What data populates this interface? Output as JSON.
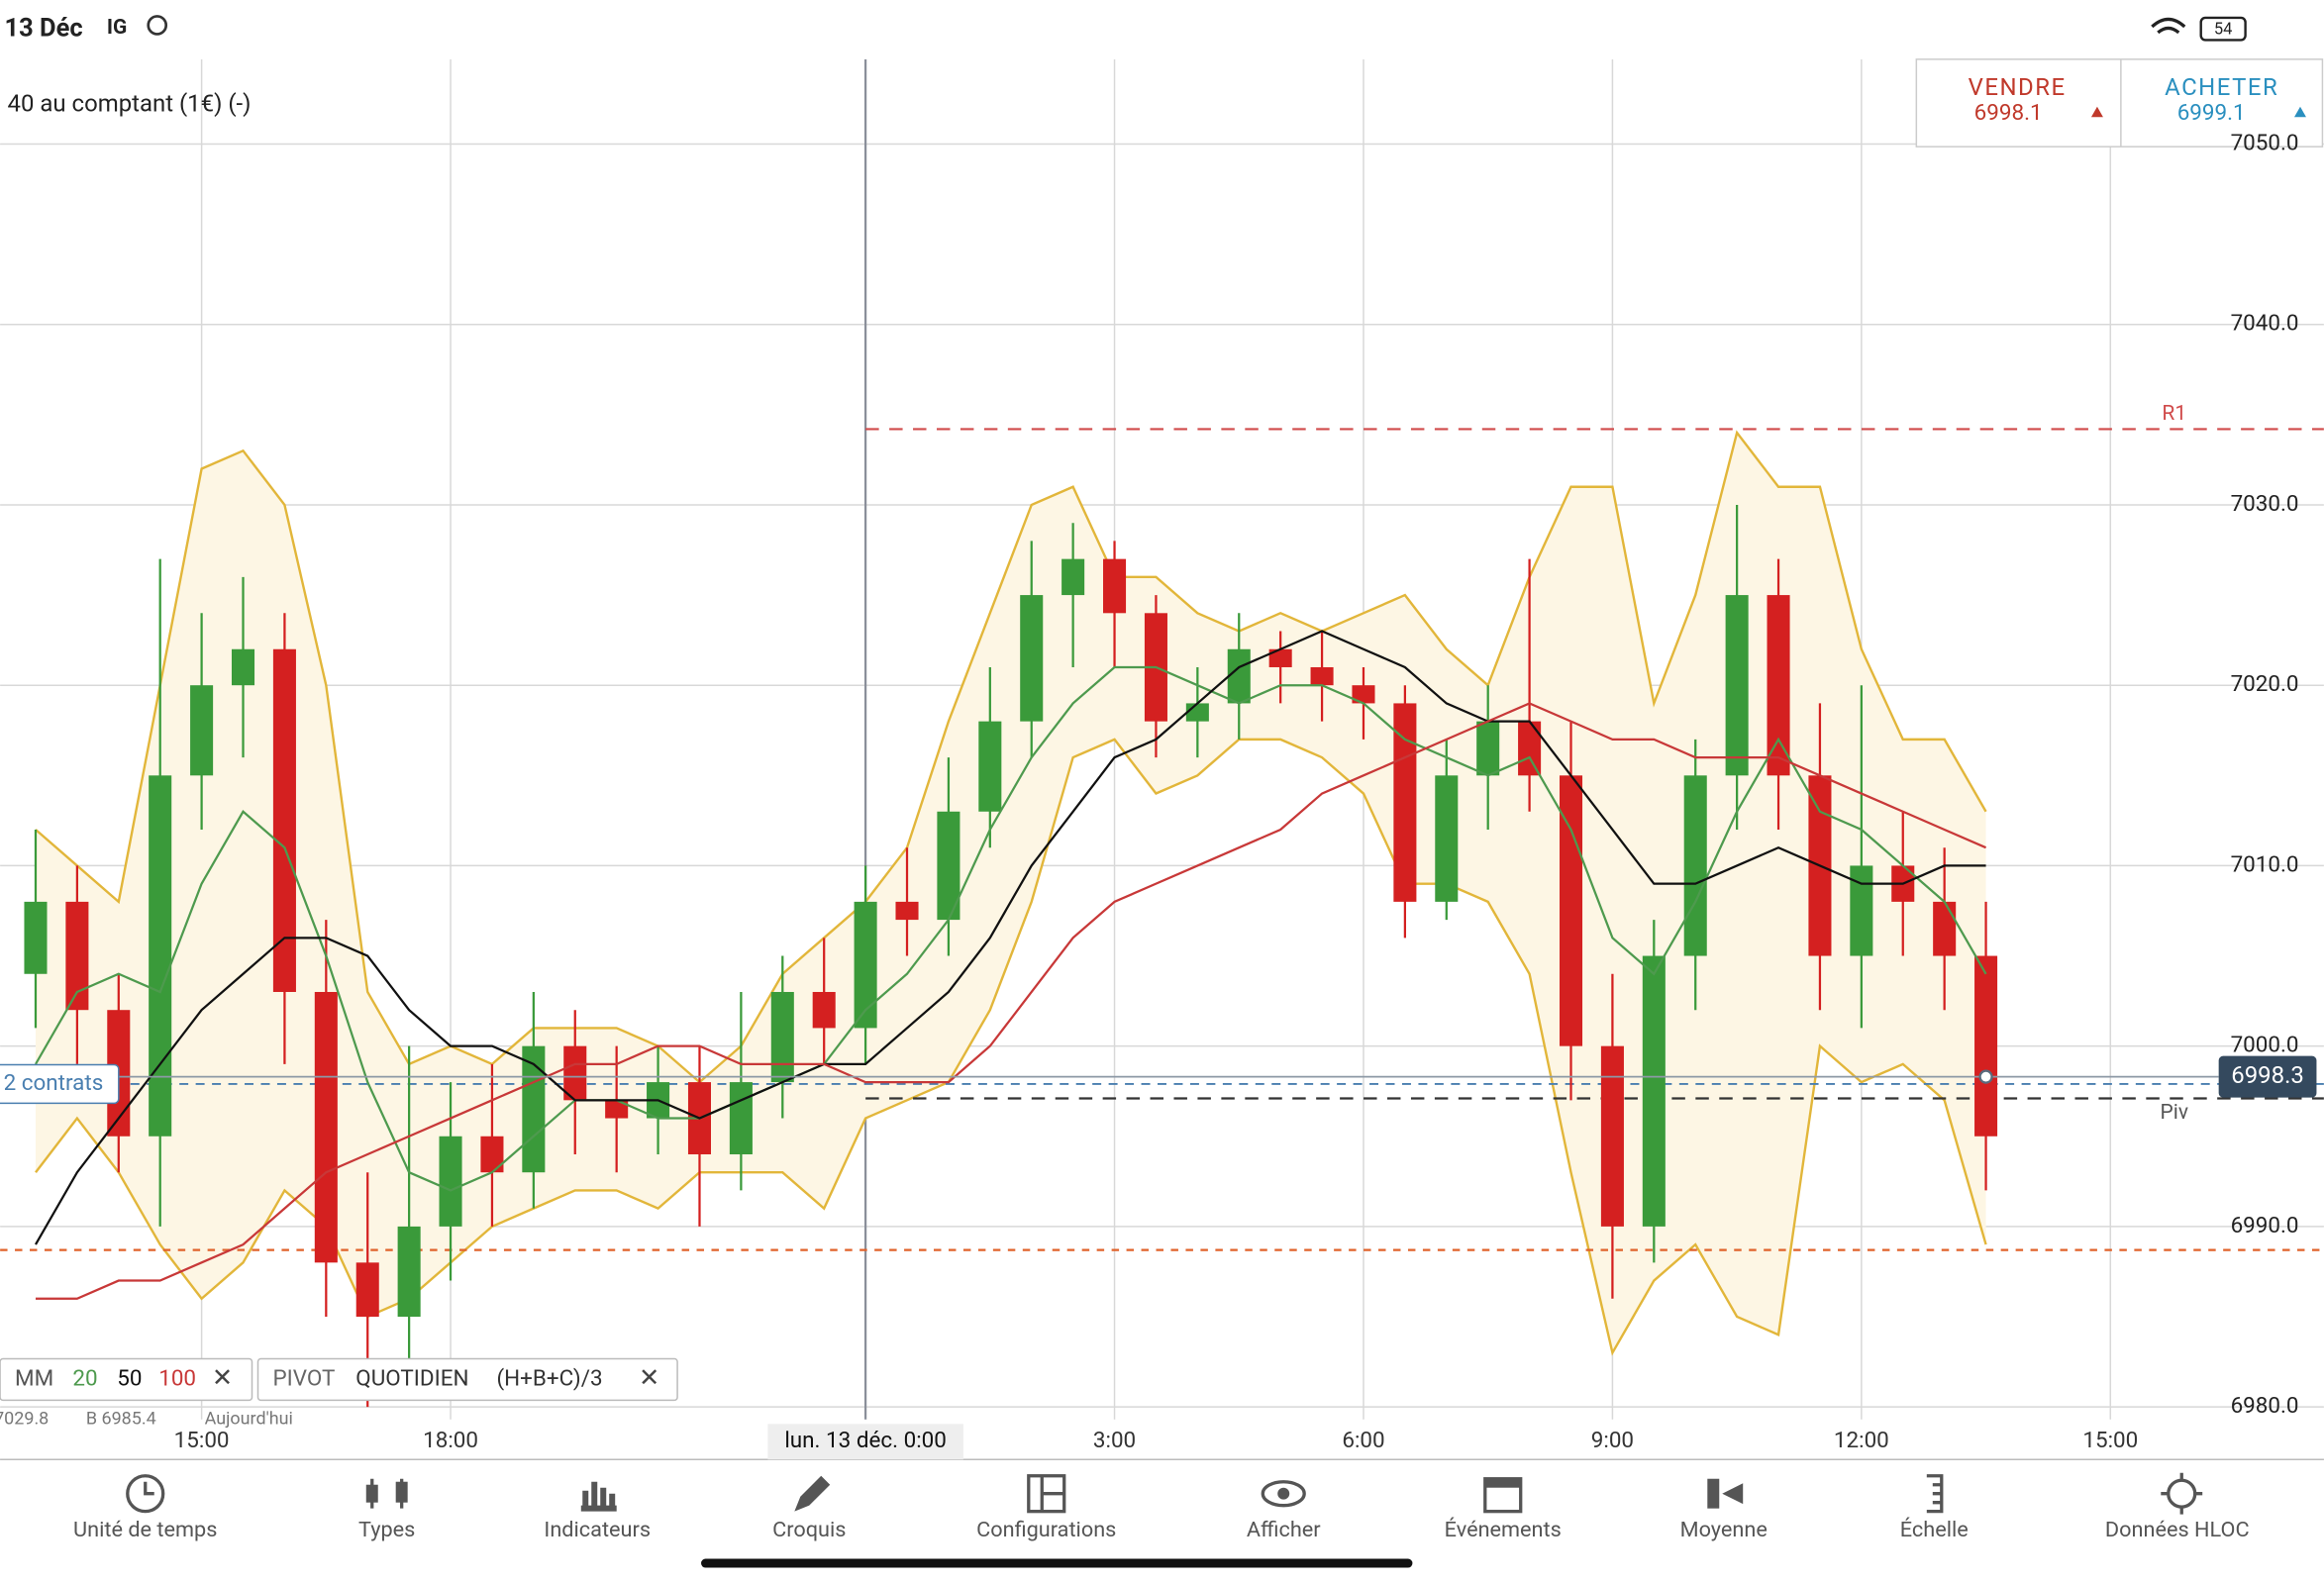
{
  "status_bar": {
    "date": "13 Déc",
    "app": "IG",
    "battery": "54"
  },
  "instrument": "40 au comptant (1€) (-)",
  "trade": {
    "sell_label": "VENDRE",
    "sell_price": "6998.1",
    "buy_label": "ACHETER",
    "buy_price": "6999.1"
  },
  "chart_data": {
    "type": "candlestick",
    "x": [
      1,
      2,
      3,
      4,
      5,
      6,
      7,
      8,
      9,
      10,
      11,
      12,
      13,
      14,
      15,
      16,
      17,
      18,
      19,
      20,
      21,
      22,
      23,
      24,
      25,
      26,
      27,
      28,
      29,
      30,
      31,
      32,
      33,
      34,
      35,
      36,
      37,
      38,
      39,
      40,
      41,
      42,
      43,
      44,
      45,
      46,
      47,
      48
    ],
    "open": [
      7004,
      7008,
      7002,
      6995,
      7015,
      7020,
      7022,
      7003,
      6988,
      6985,
      6990,
      6995,
      6993,
      7000,
      6997,
      6996,
      6998,
      6994,
      6998,
      7003,
      7001,
      7008,
      7007,
      7013,
      7018,
      7025,
      7027,
      7024,
      7018,
      7019,
      7022,
      7021,
      7020,
      7019,
      7008,
      7015,
      7018,
      7015,
      7000,
      6990,
      7005,
      7015,
      7025,
      7015,
      7005,
      7010,
      7008,
      7005
    ],
    "high": [
      7012,
      7010,
      7004,
      7027,
      7024,
      7026,
      7024,
      7007,
      6993,
      7000,
      6998,
      6999,
      7003,
      7002,
      7000,
      7000,
      7000,
      7003,
      7005,
      7006,
      7010,
      7011,
      7016,
      7021,
      7028,
      7029,
      7028,
      7025,
      7021,
      7024,
      7023,
      7023,
      7021,
      7020,
      7017,
      7020,
      7027,
      7018,
      7004,
      7007,
      7017,
      7030,
      7027,
      7019,
      7020,
      7013,
      7011,
      7008
    ],
    "low": [
      7001,
      6999,
      6993,
      6990,
      7012,
      7016,
      6999,
      6985,
      6980,
      6982,
      6987,
      6990,
      6991,
      6994,
      6993,
      6994,
      6990,
      6992,
      6996,
      6999,
      6999,
      7005,
      7005,
      7011,
      7016,
      7021,
      7021,
      7016,
      7016,
      7017,
      7019,
      7018,
      7017,
      7006,
      7007,
      7012,
      7013,
      6997,
      6986,
      6988,
      7002,
      7012,
      7012,
      7002,
      7001,
      7005,
      7002,
      6992
    ],
    "close": [
      7008,
      7002,
      6995,
      7015,
      7020,
      7022,
      7003,
      6988,
      6985,
      6990,
      6995,
      6993,
      7000,
      6997,
      6996,
      6998,
      6994,
      6998,
      7003,
      7001,
      7008,
      7007,
      7013,
      7018,
      7025,
      7027,
      7024,
      7018,
      7019,
      7022,
      7021,
      7020,
      7019,
      7008,
      7015,
      7018,
      7015,
      7000,
      6990,
      7005,
      7015,
      7025,
      7015,
      7005,
      7010,
      7008,
      7005,
      6995
    ],
    "up_color": "#3a9a3a",
    "down_color": "#d42020",
    "lines": [
      {
        "period": 20,
        "color": "#4e9a4e",
        "values": [
          6999,
          7003,
          7004,
          7003,
          7009,
          7013,
          7011,
          7005,
          6998,
          6993,
          6992,
          6993,
          6995,
          6997,
          6997,
          6996,
          6996,
          6997,
          6998,
          6999,
          7002,
          7004,
          7007,
          7012,
          7016,
          7019,
          7021,
          7021,
          7020,
          7019,
          7020,
          7020,
          7019,
          7017,
          7016,
          7015,
          7016,
          7012,
          7006,
          7004,
          7008,
          7013,
          7017,
          7013,
          7012,
          7010,
          7008,
          7004
        ]
      },
      {
        "period": 50,
        "color": "#111111",
        "values": [
          6989,
          6993,
          6996,
          6999,
          7002,
          7004,
          7006,
          7006,
          7005,
          7002,
          7000,
          7000,
          6999,
          6997,
          6997,
          6997,
          6996,
          6997,
          6998,
          6999,
          6999,
          7001,
          7003,
          7006,
          7010,
          7013,
          7016,
          7017,
          7019,
          7021,
          7022,
          7023,
          7022,
          7021,
          7019,
          7018,
          7018,
          7015,
          7012,
          7009,
          7009,
          7010,
          7011,
          7010,
          7009,
          7009,
          7010,
          7010
        ]
      },
      {
        "period": 100,
        "color": "#c83838",
        "values": [
          6986,
          6986,
          6987,
          6987,
          6988,
          6989,
          6991,
          6993,
          6994,
          6995,
          6996,
          6997,
          6998,
          6999,
          6999,
          7000,
          7000,
          6999,
          6999,
          6999,
          6998,
          6998,
          6998,
          7000,
          7003,
          7006,
          7008,
          7009,
          7010,
          7011,
          7012,
          7014,
          7015,
          7016,
          7017,
          7018,
          7019,
          7018,
          7017,
          7017,
          7016,
          7016,
          7016,
          7015,
          7014,
          7013,
          7012,
          7011
        ]
      }
    ],
    "bands": {
      "color": "#e2b63a",
      "fill": "#fdf6e4",
      "upper": [
        7012,
        7010,
        7008,
        7020,
        7032,
        7033,
        7030,
        7020,
        7003,
        6999,
        7000,
        6999,
        7001,
        7001,
        7001,
        7000,
        6998,
        7000,
        7004,
        7006,
        7008,
        7011,
        7018,
        7024,
        7030,
        7031,
        7026,
        7026,
        7024,
        7023,
        7024,
        7023,
        7024,
        7025,
        7022,
        7020,
        7026,
        7031,
        7031,
        7019,
        7025,
        7034,
        7031,
        7031,
        7022,
        7017,
        7017,
        7013
      ],
      "lower": [
        6993,
        6996,
        6993,
        6989,
        6986,
        6988,
        6992,
        6990,
        6985,
        6986,
        6988,
        6990,
        6991,
        6992,
        6992,
        6991,
        6993,
        6993,
        6993,
        6991,
        6996,
        6997,
        6998,
        7002,
        7008,
        7016,
        7017,
        7014,
        7015,
        7017,
        7017,
        7016,
        7014,
        7009,
        7009,
        7008,
        7004,
        6993,
        6983,
        6987,
        6989,
        6985,
        6984,
        7000,
        6998,
        6999,
        6997,
        6989
      ]
    },
    "levels": [
      {
        "name": "R1",
        "value": 7034.2,
        "color": "#d04a4a"
      },
      {
        "name": "Piv",
        "value": 6997.1,
        "color": "#333333"
      },
      {
        "value": 6988.7,
        "color": "#e0622a"
      }
    ],
    "position": {
      "label": "2 contrats",
      "value": 6997.9,
      "color": "#4a7fb0"
    },
    "current_price": 6998.3,
    "xlim": [
      0.143,
      53.36
    ],
    "ylim": [
      6979.3,
      7054.7
    ],
    "xticks": [
      {
        "value": 5,
        "label": "15:00"
      },
      {
        "value": 11,
        "label": "18:00"
      },
      {
        "value": 21,
        "label": "lun. 13 déc. 0:00"
      },
      {
        "value": 27,
        "label": "3:00"
      },
      {
        "value": 33,
        "label": "6:00"
      },
      {
        "value": 39,
        "label": "9:00"
      },
      {
        "value": 45,
        "label": "12:00"
      },
      {
        "value": 51,
        "label": "15:00"
      }
    ],
    "yticks": [
      {
        "value": 6980,
        "label": "6980.0"
      },
      {
        "value": 6990,
        "label": "6990.0"
      },
      {
        "value": 7000,
        "label": "7000.0"
      },
      {
        "value": 7010,
        "label": "7010.0"
      },
      {
        "value": 7020,
        "label": "7020.0"
      },
      {
        "value": 7030,
        "label": "7030.0"
      },
      {
        "value": 7040,
        "label": "7040.0"
      },
      {
        "value": 7050,
        "label": "7050.0"
      }
    ],
    "grid": true,
    "indicators": {
      "ma_label": "MM",
      "pivot": [
        "PIVOT",
        "QUOTIDIEN",
        "(H+B+C)/3"
      ]
    },
    "info_strip": [
      "7029.8",
      "B 6985.4",
      "Aujourd'hui"
    ]
  },
  "toolbar": [
    "Unité de temps",
    "Types",
    "Indicateurs",
    "Croquis",
    "Configurations",
    "Afficher",
    "Événements",
    "Moyenne",
    "Échelle",
    "Données HLOC"
  ]
}
